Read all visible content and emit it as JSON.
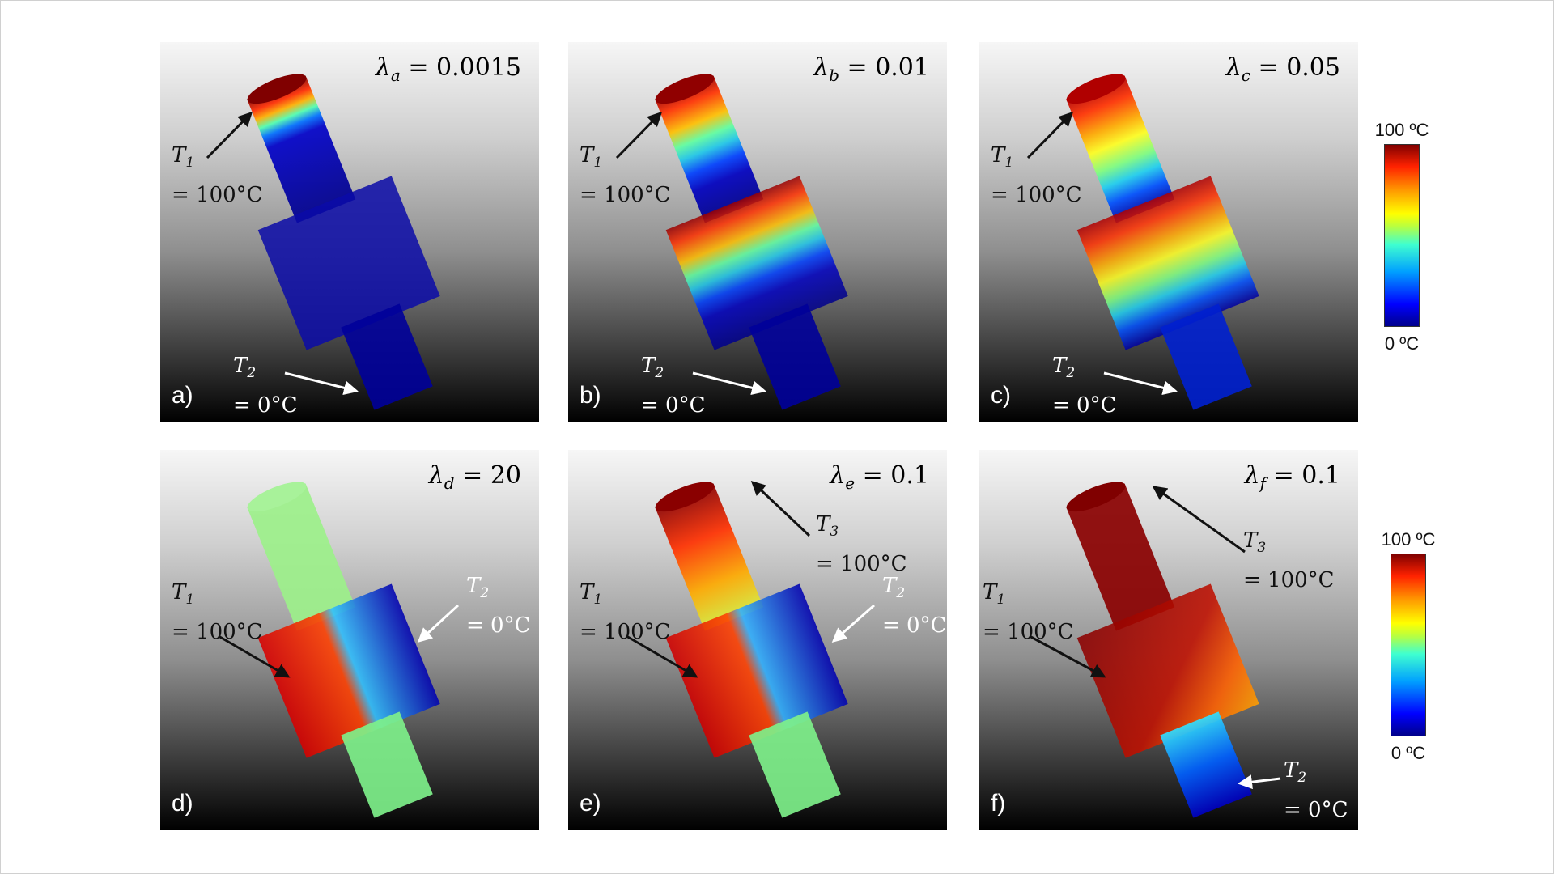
{
  "panels": [
    {
      "label": "a)",
      "lambda_sym": "λ",
      "lambda_sub": "a",
      "lambda_val": "= 0.0015"
    },
    {
      "label": "b)",
      "lambda_sym": "λ",
      "lambda_sub": "b",
      "lambda_val": "= 0.01"
    },
    {
      "label": "c)",
      "lambda_sym": "λ",
      "lambda_sub": "c",
      "lambda_val": "= 0.05"
    },
    {
      "label": "d)",
      "lambda_sym": "λ",
      "lambda_sub": "d",
      "lambda_val": "= 20"
    },
    {
      "label": "e)",
      "lambda_sym": "λ",
      "lambda_sub": "e",
      "lambda_val": "= 0.1"
    },
    {
      "label": "f)",
      "lambda_sym": "λ",
      "lambda_sub": "f",
      "lambda_val": "= 0.1"
    }
  ],
  "annotations": {
    "T1": {
      "name": "T",
      "sub": "1",
      "value": "= 100°C"
    },
    "T2": {
      "name": "T",
      "sub": "2",
      "value": "= 0°C"
    },
    "T3": {
      "name": "T",
      "sub": "3",
      "value": "= 100°C"
    }
  },
  "colorbar": {
    "top_label": "100 ºC",
    "bottom_label": "0 ºC",
    "colormap": "jet"
  }
}
